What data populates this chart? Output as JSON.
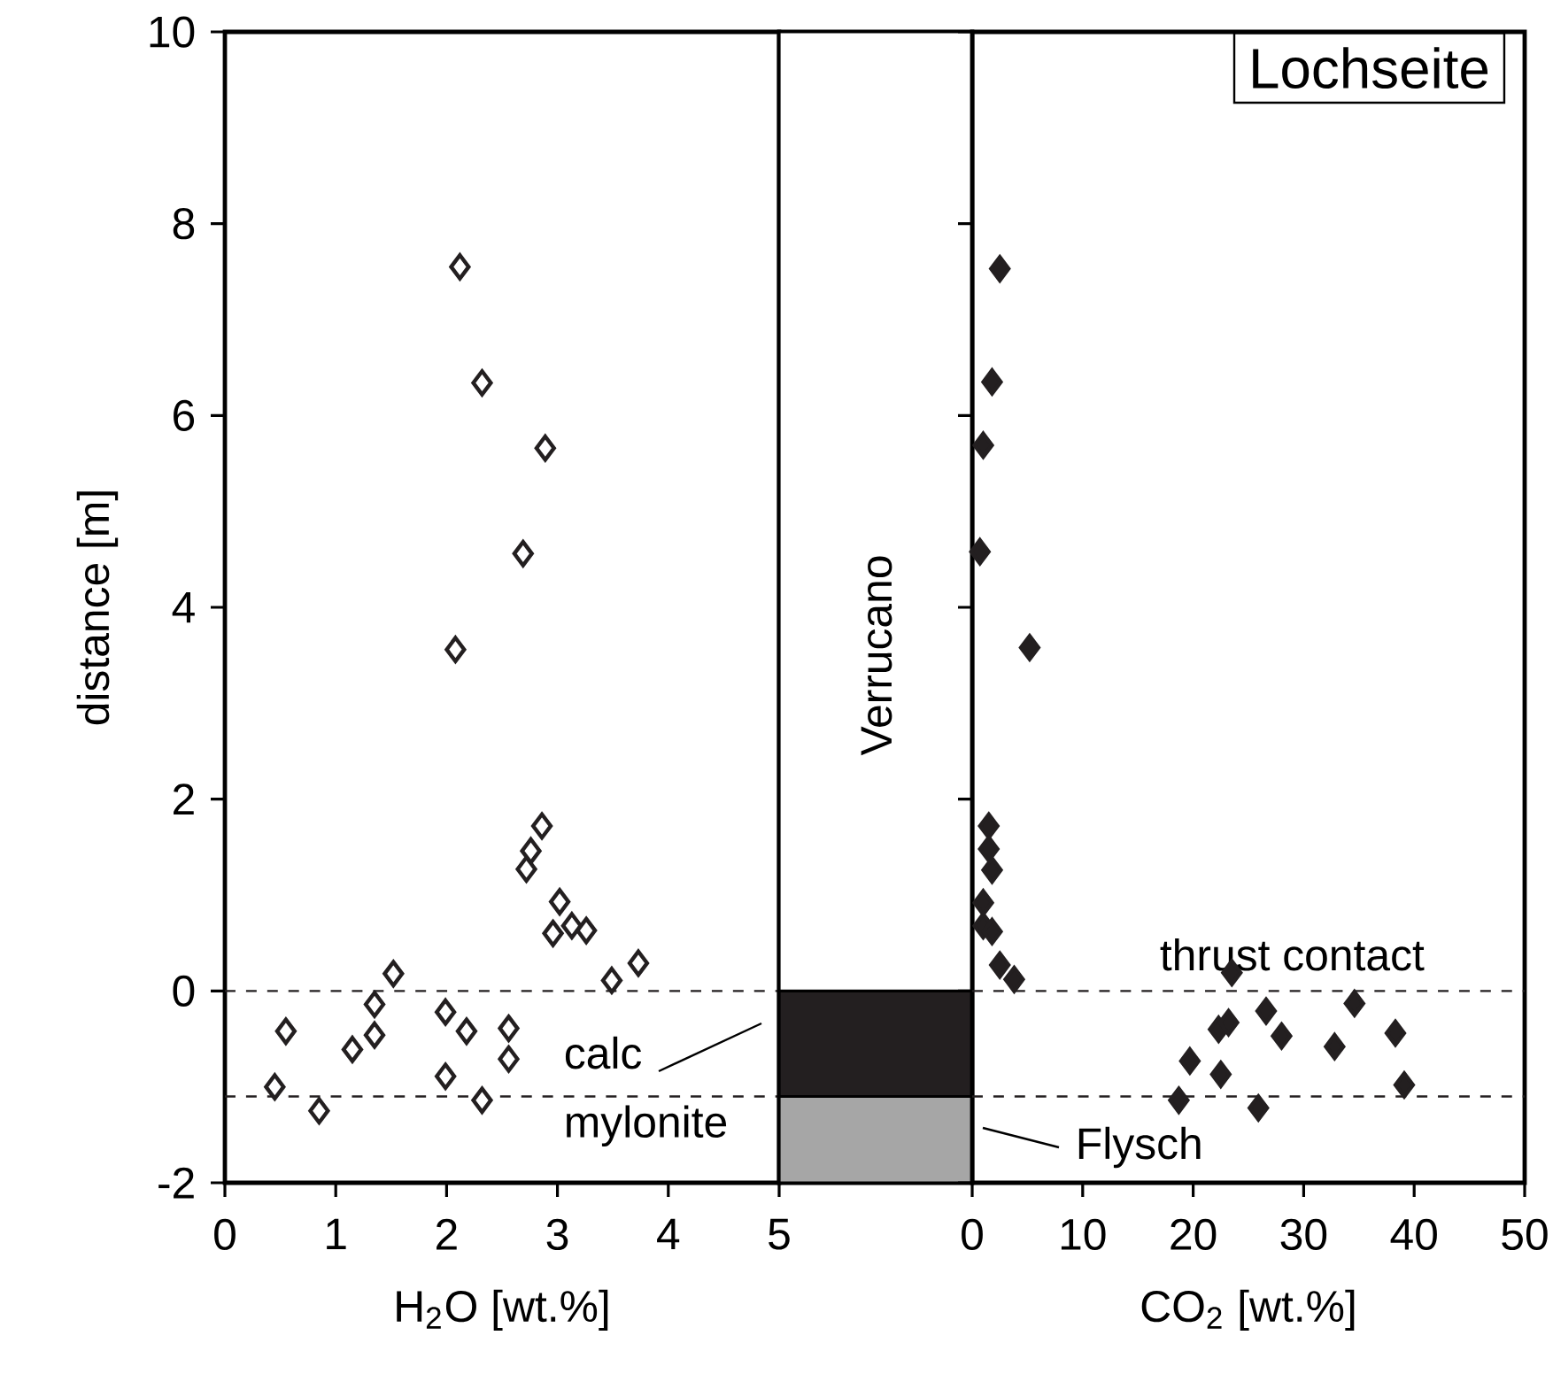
{
  "chart_data": [
    {
      "type": "scatter",
      "xlabel": "H$_{2}$O [wt.%]",
      "ylabel": "distance [m]",
      "xlim": [
        0,
        5
      ],
      "xticks": [
        0,
        1,
        2,
        3,
        4,
        5
      ],
      "ylim": [
        -2,
        10
      ],
      "yticks": [
        -2,
        0,
        2,
        4,
        6,
        8,
        10
      ],
      "marker": "diamond",
      "series": [
        {
          "color": "#231f20",
          "x": [
            2.12,
            2.32,
            2.89,
            2.69,
            2.08,
            2.86,
            2.76,
            2.72,
            3.02,
            2.96,
            3.13,
            3.26,
            3.49,
            3.73,
            1.52,
            1.35,
            1.35,
            1.15,
            0.55,
            0.45,
            0.85,
            1.99,
            2.18,
            1.99,
            2.32,
            2.56,
            2.56
          ],
          "values": [
            7.55,
            6.34,
            5.66,
            4.56,
            3.56,
            1.72,
            1.46,
            1.27,
            0.93,
            0.6,
            0.68,
            0.63,
            0.11,
            0.29,
            0.18,
            -0.14,
            -0.46,
            -0.61,
            -0.42,
            -1.0,
            -1.25,
            -0.22,
            -0.42,
            -0.89,
            -1.14,
            -0.39,
            -0.71
          ]
        }
      ],
      "ref_lines": [
        {
          "axis": "y",
          "value": 0,
          "line_style": "dashed",
          "color": "#231f20"
        },
        {
          "axis": "y",
          "value": -1.1,
          "line_style": "dashed",
          "color": "#231f20"
        }
      ]
    },
    {
      "type": "bar",
      "stacked": true,
      "categories": [
        null
      ],
      "ylim": [
        -2,
        10
      ],
      "yticks": [
        -2,
        0,
        2,
        4,
        6,
        8,
        10
      ],
      "tick_labels": false,
      "series": [
        {
          "name": "calc mylonite",
          "color": "#231f20",
          "values": [
            -1.1
          ]
        },
        {
          "name": "Flysch",
          "color": "#a6a6a6",
          "values": [
            -0.9
          ]
        },
        {
          "name": "Verrucano",
          "color": "#ffffff",
          "values": [
            10
          ]
        }
      ]
    },
    {
      "type": "scatter",
      "title": "Lochseite",
      "xlabel": "CO$_{2}$ [wt.%]",
      "xlim": [
        0,
        50
      ],
      "xticks": [
        0,
        10,
        20,
        30,
        40,
        50
      ],
      "ylim": [
        -2,
        10
      ],
      "yticks": [
        -2,
        0,
        2,
        4,
        6,
        8,
        10
      ],
      "tick_labels": "x",
      "marker": "diamond",
      "series": [
        {
          "color": "#231f20",
          "x": [
            2.5,
            1.8,
            1.0,
            0.7,
            5.2,
            1.5,
            1.5,
            1.8,
            1.0,
            1.0,
            1.8,
            2.5,
            3.8,
            23.5,
            26.6,
            34.6,
            22.3,
            23.2,
            28.0,
            32.8,
            38.3,
            19.7,
            22.5,
            39.1,
            18.7,
            25.9
          ],
          "values": [
            7.53,
            6.35,
            5.69,
            4.58,
            3.58,
            1.72,
            1.48,
            1.26,
            0.92,
            0.68,
            0.62,
            0.27,
            0.12,
            0.19,
            -0.21,
            -0.13,
            -0.4,
            -0.33,
            -0.47,
            -0.58,
            -0.44,
            -0.73,
            -0.87,
            -0.98,
            -1.14,
            -1.22
          ]
        }
      ],
      "ref_lines": [
        {
          "axis": "y",
          "value": 0,
          "label": "thrust contact",
          "line_style": "dashed",
          "color": "#231f20"
        },
        {
          "axis": "y",
          "value": -1.1,
          "line_style": "dashed",
          "color": "#231f20"
        }
      ]
    }
  ]
}
